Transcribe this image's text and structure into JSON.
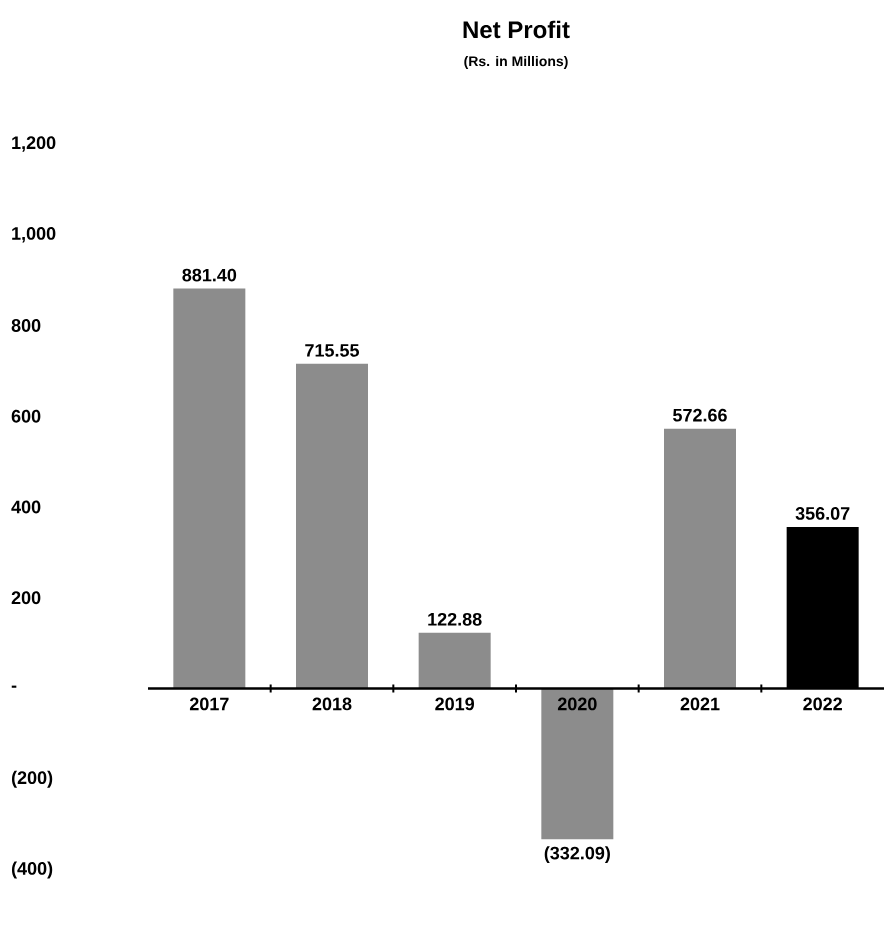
{
  "chart_data": {
    "type": "bar",
    "title": "Net Profit",
    "subtitle": "(Rs. in Millions)",
    "categories": [
      "2017",
      "2018",
      "2019",
      "2020",
      "2021",
      "2022"
    ],
    "values": [
      881.4,
      715.55,
      122.88,
      -332.09,
      572.66,
      356.07
    ],
    "colors": [
      "#8c8c8c",
      "#8c8c8c",
      "#8c8c8c",
      "#8c8c8c",
      "#8c8c8c",
      "#000000"
    ],
    "value_labels": [
      "881.40",
      "715.55",
      "122.88",
      "(332.09)",
      "572.66",
      "356.07"
    ],
    "ylim": [
      -400,
      1200
    ],
    "yticks": [
      {
        "value": 1200,
        "label": "1,200"
      },
      {
        "value": 1000,
        "label": "1,000"
      },
      {
        "value": 800,
        "label": "800"
      },
      {
        "value": 600,
        "label": "600"
      },
      {
        "value": 400,
        "label": "400"
      },
      {
        "value": 200,
        "label": "200"
      },
      {
        "value": 0,
        "label": "-"
      },
      {
        "value": -200,
        "label": "(200)"
      },
      {
        "value": -400,
        "label": "(400)"
      }
    ]
  }
}
